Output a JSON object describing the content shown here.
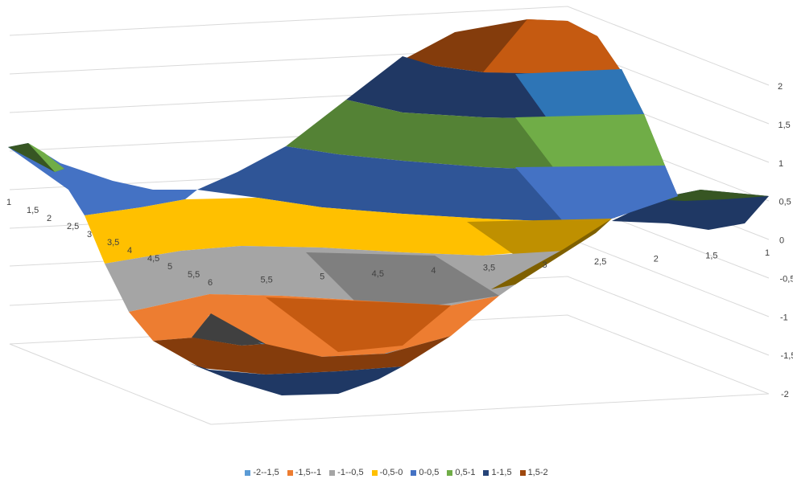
{
  "chart_data": {
    "type": "surface",
    "x_ticks": [
      "1",
      "1,5",
      "2",
      "2,5",
      "3",
      "3,5",
      "4",
      "4,5",
      "5",
      "5,5",
      "6"
    ],
    "y_ticks": [
      "6",
      "5,5",
      "5",
      "4,5",
      "4",
      "3,5",
      "3",
      "2,5",
      "2",
      "1,5",
      "1"
    ],
    "z_ticks": [
      "2",
      "1,5",
      "1",
      "0,5",
      "0",
      "-0,5",
      "-1",
      "-1,5",
      "-2"
    ],
    "zlim": [
      -2,
      2
    ],
    "legend_position": "bottom",
    "legend": [
      {
        "label": "-2--1,5",
        "color": "#5b9bd5"
      },
      {
        "label": "-1,5--1",
        "color": "#ed7d31"
      },
      {
        "label": "-1--0,5",
        "color": "#a5a5a5"
      },
      {
        "label": "-0,5-0",
        "color": "#ffc000"
      },
      {
        "label": "0-0,5",
        "color": "#4472c4"
      },
      {
        "label": "0,5-1",
        "color": "#70ad47"
      },
      {
        "label": "1-1,5",
        "color": "#264478"
      },
      {
        "label": "1,5-2",
        "color": "#9e480e"
      }
    ],
    "bands": [
      {
        "range": [
          -2,
          -1.5
        ],
        "color": "#5b9bd5"
      },
      {
        "range": [
          -1.5,
          -1
        ],
        "color": "#ed7d31"
      },
      {
        "range": [
          -1,
          -0.5
        ],
        "color": "#a5a5a5"
      },
      {
        "range": [
          -0.5,
          0
        ],
        "color": "#ffc000"
      },
      {
        "range": [
          0,
          0.5
        ],
        "color": "#4472c4"
      },
      {
        "range": [
          0.5,
          1
        ],
        "color": "#70ad47"
      },
      {
        "range": [
          1,
          1.5
        ],
        "color": "#264478"
      },
      {
        "range": [
          1.5,
          2
        ],
        "color": "#9e480e"
      }
    ]
  }
}
